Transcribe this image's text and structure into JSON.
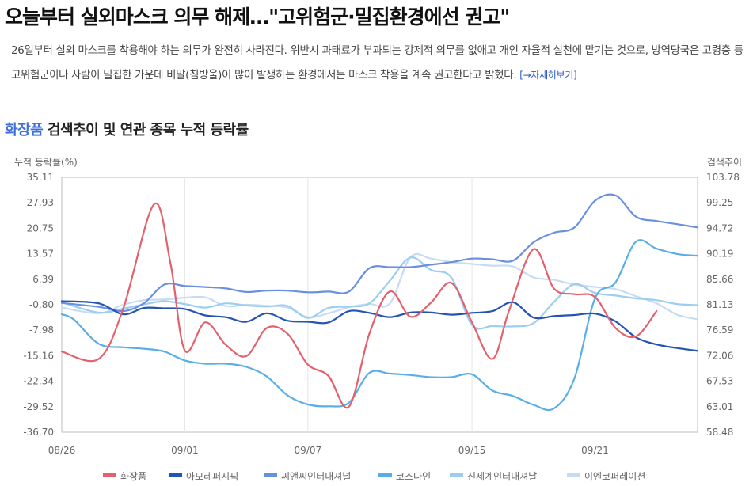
{
  "article": {
    "headline": "오늘부터 실외마스크 의무 해제…\"고위험군·밀집환경에선 권고\"",
    "summary": "26일부터 실외 마스크를 착용해야 하는 의무가 완전히 사라진다. 위반시 과태료가 부과되는 강제적 의무를 없애고 개인 자율적 실천에 맡기는 것으로, 방역당국은 고령층 등 고위험군이나 사람이 밀집한 가운데 비말(침방울)이 많이 발생하는 환경에서는 마스크 착용을 계속 권고한다고 밝혔다.",
    "more_link": "[→자세히보기]"
  },
  "chart_section": {
    "keyword": "화장품",
    "title_rest": " 검색추이 및 연관 종목 누적 등락률"
  },
  "chart_data": {
    "type": "line",
    "title": "화장품 검색추이 및 연관 종목 누적 등락률",
    "ylabel_left": "누적 등락률(%)",
    "ylabel_right": "검색추이",
    "left_ticks": [
      "35.11",
      "27.93",
      "20.75",
      "13.57",
      "6.39",
      "-0.80",
      "-7.98",
      "-15.16",
      "-22.34",
      "-29.52",
      "-36.70"
    ],
    "right_ticks": [
      "103.78",
      "99.25",
      "94.72",
      "90.19",
      "85.66",
      "81.13",
      "76.59",
      "72.06",
      "67.53",
      "63.01",
      "58.48"
    ],
    "ylim_left": [
      -36.7,
      35.11
    ],
    "ylim_right": [
      58.48,
      103.78
    ],
    "xlim": [
      0,
      31
    ],
    "x_ticks": [
      {
        "pos": 0,
        "label": "08/26"
      },
      {
        "pos": 6,
        "label": "09/01"
      },
      {
        "pos": 12,
        "label": "09/07"
      },
      {
        "pos": 20,
        "label": "09/15"
      },
      {
        "pos": 26,
        "label": "09/21"
      }
    ],
    "series": [
      {
        "name": "화장품",
        "axis": "right",
        "color": "#e4616b",
        "x": [
          0,
          1.8,
          3,
          4.5,
          5.3,
          6,
          7,
          8,
          9,
          10,
          11,
          12,
          13,
          14,
          15,
          16,
          17,
          18,
          19,
          20,
          21,
          21.8,
          23,
          24,
          25,
          26,
          27,
          28,
          29
        ],
        "values": [
          72.8,
          71.5,
          80.5,
          99.0,
          88.5,
          73.0,
          78.0,
          74.0,
          72.0,
          77.0,
          76.0,
          70.5,
          68.5,
          63.0,
          76.0,
          83.5,
          79.0,
          81.5,
          85.0,
          78.0,
          71.5,
          80.0,
          91.0,
          84.0,
          83.0,
          82.5,
          77.0,
          75.5,
          80.0
        ]
      },
      {
        "name": "아모레퍼시픽",
        "axis": "left",
        "color": "#2553b3",
        "x": [
          0,
          1.8,
          3,
          4,
          5,
          6,
          7,
          8,
          9,
          10,
          11,
          12,
          13,
          14,
          15,
          16,
          17,
          18,
          19,
          20,
          21,
          22,
          23,
          24,
          25,
          26,
          27,
          28,
          29,
          30,
          31
        ],
        "values": [
          0.2,
          -0.4,
          -3.5,
          -1.7,
          -1.8,
          -2.0,
          -3.8,
          -4.3,
          -5.6,
          -3.2,
          -5.3,
          -5.6,
          -5.8,
          -2.6,
          -3.1,
          -4.3,
          -3.0,
          -3.0,
          -3.6,
          -3.1,
          -2.6,
          -0.1,
          -4.4,
          -4.0,
          -3.7,
          -3.3,
          -5.5,
          -10.0,
          -12.0,
          -13.0,
          -13.8
        ]
      },
      {
        "name": "씨앤씨인터내셔널",
        "axis": "left",
        "color": "#6b8fe0",
        "x": [
          0,
          1.8,
          3,
          4,
          5,
          6,
          7,
          8,
          9,
          10,
          11,
          12,
          13,
          14,
          15,
          16,
          17,
          18,
          19,
          20,
          21,
          22,
          23,
          24,
          25,
          26,
          27,
          28,
          29,
          30,
          31
        ],
        "values": [
          -0.3,
          -1.4,
          -2.6,
          -0.4,
          4.9,
          4.5,
          4.2,
          3.8,
          2.8,
          3.2,
          3.2,
          2.7,
          2.9,
          2.9,
          9.5,
          9.8,
          9.8,
          10.5,
          11.2,
          12.2,
          12.0,
          11.6,
          16.8,
          19.5,
          21.0,
          28.5,
          30.0,
          24.0,
          22.8,
          21.9,
          21.0
        ]
      },
      {
        "name": "코스나인",
        "axis": "left",
        "color": "#5aaee8",
        "x": [
          0,
          0.6,
          1.8,
          3,
          4,
          5,
          6,
          7,
          8,
          9,
          10,
          11,
          12,
          13,
          14,
          15,
          16,
          17,
          18,
          19,
          20,
          21,
          22,
          23,
          24,
          25,
          26,
          27,
          28,
          29,
          30,
          31
        ],
        "values": [
          -3.5,
          -5.0,
          -11.8,
          -12.8,
          -13.2,
          -14.0,
          -16.5,
          -17.4,
          -17.4,
          -18.3,
          -21.0,
          -26.3,
          -28.9,
          -29.4,
          -28.4,
          -20.0,
          -20.2,
          -20.6,
          -21.2,
          -21.2,
          -20.4,
          -25.0,
          -26.5,
          -29.0,
          -30.0,
          -21.5,
          1.0,
          5.5,
          17.0,
          15.0,
          13.5,
          13.0
        ]
      },
      {
        "name": "신세계인터내셔날",
        "axis": "left",
        "color": "#9ccef0",
        "x": [
          0,
          1.8,
          3,
          4,
          5,
          6,
          7,
          8,
          9,
          10,
          11,
          12,
          13,
          14,
          15,
          16,
          17,
          18,
          19,
          20,
          21,
          22,
          23,
          24,
          25,
          26,
          27,
          28,
          29,
          30,
          31
        ],
        "values": [
          -0.1,
          -3.0,
          -1.9,
          -0.7,
          0.2,
          -0.6,
          -1.6,
          -0.4,
          -1.0,
          -1.3,
          -1.1,
          -4.5,
          -1.7,
          -1.3,
          -0.4,
          6.0,
          12.5,
          9.0,
          6.8,
          -6.5,
          -6.8,
          -6.9,
          -6.0,
          0.0,
          5.0,
          2.5,
          1.8,
          1.0,
          0.5,
          -0.6,
          -0.9
        ]
      },
      {
        "name": "이엔코퍼레이션",
        "axis": "left",
        "color": "#c6dcf4",
        "x": [
          0,
          1.8,
          3,
          4,
          5,
          6,
          7,
          8,
          9,
          10,
          11,
          12,
          13,
          14,
          15,
          16,
          17,
          18,
          19,
          20,
          21,
          22,
          23,
          24,
          25,
          26,
          27,
          28,
          29,
          30,
          31
        ],
        "values": [
          -1.6,
          -3.2,
          -0.8,
          0.5,
          0.7,
          1.2,
          1.3,
          -1.2,
          -0.8,
          -1.1,
          -1.6,
          -4.3,
          -3.2,
          -1.5,
          -0.6,
          -0.4,
          12.6,
          12.2,
          11.2,
          10.7,
          10.2,
          10.0,
          6.9,
          6.2,
          4.9,
          4.2,
          3.6,
          1.6,
          -0.4,
          -3.6,
          -4.9
        ]
      }
    ],
    "legend_position": "bottom"
  }
}
